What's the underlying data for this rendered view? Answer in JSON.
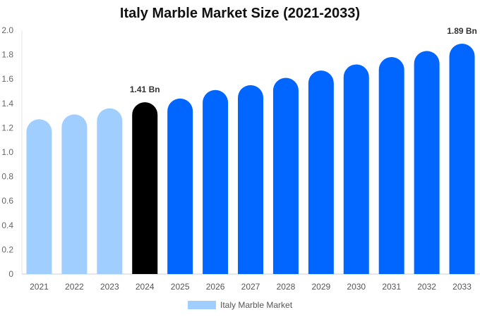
{
  "chart_data": {
    "type": "bar",
    "title": "Italy Marble Market Size (2021-2033)",
    "xlabel": "",
    "ylabel": "",
    "categories": [
      "2021",
      "2022",
      "2023",
      "2024",
      "2025",
      "2026",
      "2027",
      "2028",
      "2029",
      "2030",
      "2031",
      "2032",
      "2033"
    ],
    "series": [
      {
        "name": "Italy Marble Market",
        "values": [
          1.27,
          1.31,
          1.36,
          1.41,
          1.44,
          1.51,
          1.55,
          1.61,
          1.67,
          1.72,
          1.78,
          1.83,
          1.89
        ]
      }
    ],
    "bar_colors": [
      "#a0cfff",
      "#a0cfff",
      "#a0cfff",
      "#000000",
      "#0066ff",
      "#0066ff",
      "#0066ff",
      "#0066ff",
      "#0066ff",
      "#0066ff",
      "#0066ff",
      "#0066ff",
      "#0066ff"
    ],
    "data_labels": [
      {
        "index": 3,
        "text": "1.41 Bn"
      },
      {
        "index": 12,
        "text": "1.89 Bn"
      }
    ],
    "ylim": [
      0,
      2.0
    ],
    "yticks": [
      "0",
      "0.2",
      "0.4",
      "0.6",
      "0.8",
      "1.0",
      "1.2",
      "1.4",
      "1.6",
      "1.8",
      "2.0"
    ],
    "grid": false,
    "legend": {
      "position": "bottom",
      "label": "Italy Marble Market",
      "color": "#a0cfff"
    }
  }
}
